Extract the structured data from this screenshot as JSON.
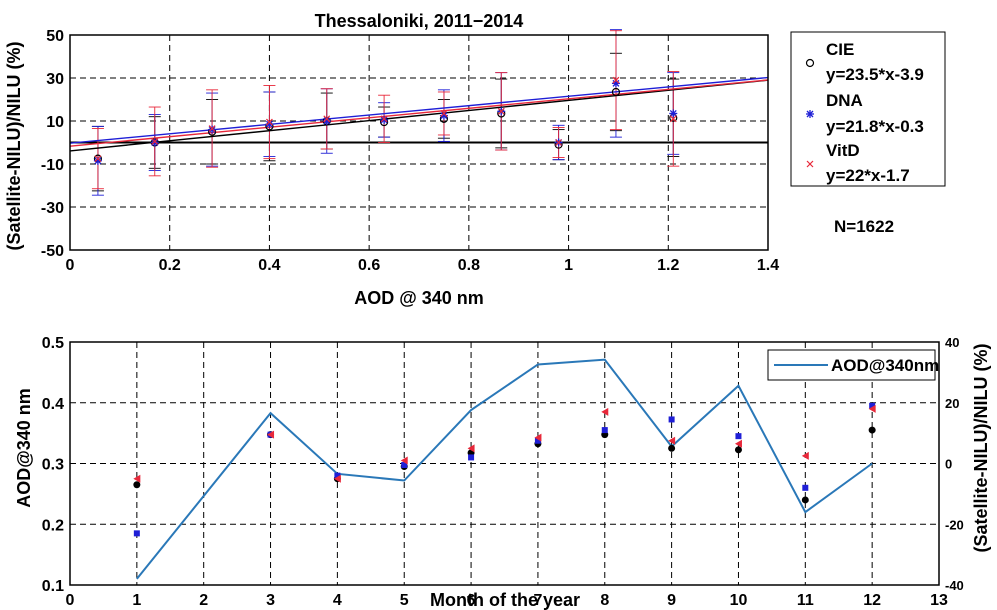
{
  "chart_data": [
    {
      "type": "scatter",
      "title": "Thessaloniki, 2011−2014",
      "xlabel": "AOD @ 340 nm",
      "ylabel": "(Satellite-NILU)/NILU (%)",
      "xlim": [
        0,
        1.4
      ],
      "ylim": [
        -50,
        50
      ],
      "xticks": [
        0,
        0.2,
        0.4,
        0.6,
        0.8,
        1,
        1.2,
        1.4
      ],
      "xtick_labels": [
        "0",
        "0.2",
        "0.4",
        "0.6",
        "0.8",
        "1",
        "1.2",
        "1.4"
      ],
      "yticks": [
        -50,
        -30,
        -10,
        10,
        30,
        50
      ],
      "ytick_labels": [
        "-50",
        "-30",
        "-10",
        "10",
        "30",
        "50"
      ],
      "grid": true,
      "legend_position": "outside-right",
      "annotation": "N=1622",
      "zero_line": 0,
      "x": [
        0.056,
        0.17,
        0.285,
        0.4,
        0.515,
        0.63,
        0.75,
        0.865,
        0.98,
        1.095,
        1.21
      ],
      "series": [
        {
          "name": "CIE",
          "fit_label": "y=23.5*x-3.9",
          "slope": 23.5,
          "intercept": -3.9,
          "color": "#000000",
          "marker": "circle",
          "values": [
            -7.5,
            0,
            5,
            7.5,
            10,
            9.5,
            11,
            13.5,
            -1,
            23.5,
            11.5
          ],
          "errors": [
            15,
            12,
            15,
            16,
            13,
            7,
            9,
            16,
            7,
            18,
            18
          ]
        },
        {
          "name": "DNA",
          "fit_label": "y=21.8*x-0.3",
          "slope": 21.8,
          "intercept": -0.3,
          "color": "#1f1fd6",
          "marker": "star",
          "values": [
            -8.5,
            0,
            6,
            8.5,
            10,
            10.5,
            12.5,
            14.5,
            0,
            27.5,
            13.5
          ],
          "errors": [
            16,
            13,
            17,
            15,
            15,
            8,
            12,
            18,
            8,
            25,
            19
          ]
        },
        {
          "name": "VitD",
          "fit_label": "y=22*x-1.7",
          "slope": 22,
          "intercept": -1.7,
          "color": "#e8283a",
          "marker": "x",
          "values": [
            -7.5,
            0.5,
            6.5,
            9.5,
            11,
            11,
            13.5,
            14.5,
            0,
            29,
            11
          ],
          "errors": [
            14,
            16,
            18,
            17,
            14,
            11,
            10,
            18,
            7,
            23,
            22
          ]
        }
      ]
    },
    {
      "type": "line",
      "xlabel": "Month of the year",
      "ylabel": "AOD@340 nm",
      "ylabel_right": "(Satellite-NILU)/NILU (%)",
      "xlim": [
        0,
        13
      ],
      "ylim": [
        0.1,
        0.5
      ],
      "ylim_right": [
        -40,
        40
      ],
      "xticks": [
        0,
        1,
        2,
        3,
        4,
        5,
        6,
        7,
        8,
        9,
        10,
        11,
        12,
        13
      ],
      "xtick_labels": [
        "0",
        "1",
        "2",
        "3",
        "4",
        "5",
        "6",
        "7",
        "8",
        "9",
        "10",
        "11",
        "12",
        "13"
      ],
      "yticks": [
        0.1,
        0.2,
        0.3,
        0.4,
        0.5
      ],
      "ytick_labels": [
        "0.1",
        "0.2",
        "0.3",
        "0.4",
        "0.5"
      ],
      "yticks_right": [
        -40,
        -20,
        0,
        20,
        40
      ],
      "ytick_labels_right": [
        "-40",
        "-20",
        "0",
        "20",
        "40"
      ],
      "grid": true,
      "legend_position": "top-right",
      "x": [
        1,
        3,
        4,
        5,
        6,
        7,
        8,
        9,
        10,
        11,
        12
      ],
      "series": [
        {
          "name": "AOD@340nm",
          "axis": "left",
          "color": "#2a78b8",
          "values": [
            0.11,
            0.383,
            0.283,
            0.272,
            0.388,
            0.463,
            0.471,
            0.328,
            0.428,
            0.22,
            0.3
          ]
        },
        {
          "axis": "right",
          "color": "#000000",
          "marker": "dot",
          "values": [
            -7,
            9.5,
            -5,
            -1,
            3.5,
            6.5,
            9.5,
            5,
            4.5,
            -12,
            11
          ]
        },
        {
          "axis": "right",
          "color": "#1f1fd6",
          "marker": "square",
          "values": [
            -23,
            9.5,
            -4,
            -0.5,
            2,
            7.5,
            11,
            14.5,
            9,
            -8,
            19
          ]
        },
        {
          "axis": "right",
          "color": "#e8283a",
          "marker": "triangle",
          "values": [
            -5,
            9.5,
            -5,
            1,
            5,
            8.5,
            17,
            7.5,
            6.5,
            2.5,
            18
          ]
        }
      ]
    }
  ]
}
